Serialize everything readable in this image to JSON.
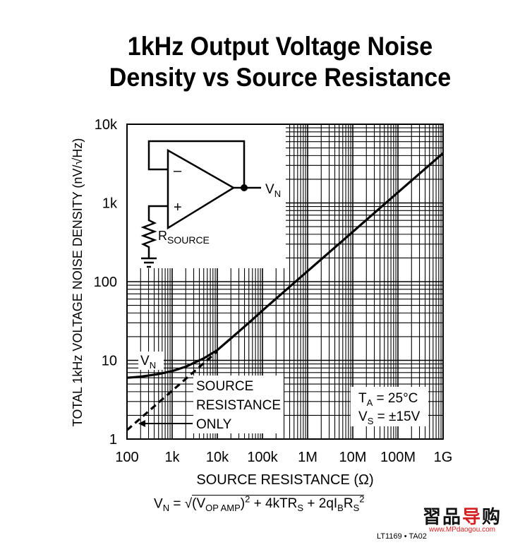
{
  "chart_data": {
    "type": "line",
    "title_lines": [
      "1kHz Output Voltage Noise",
      "Density vs Source Resistance"
    ],
    "xlabel": "SOURCE RESISTANCE (Ω)",
    "ylabel": "TOTAL 1kHz VOLTAGE NOISE DENSITY (nV/√Hz)",
    "x_scale": "log",
    "y_scale": "log",
    "xlim": [
      100,
      1000000000
    ],
    "ylim": [
      1,
      10000
    ],
    "x_ticks": [
      {
        "value": 100,
        "label": "100"
      },
      {
        "value": 1000,
        "label": "1k"
      },
      {
        "value": 10000,
        "label": "10k"
      },
      {
        "value": 100000,
        "label": "100k"
      },
      {
        "value": 1000000,
        "label": "1M"
      },
      {
        "value": 10000000,
        "label": "10M"
      },
      {
        "value": 100000000,
        "label": "100M"
      },
      {
        "value": 1000000000,
        "label": "1G"
      }
    ],
    "y_ticks": [
      {
        "value": 1,
        "label": "1"
      },
      {
        "value": 10,
        "label": "10"
      },
      {
        "value": 100,
        "label": "100"
      },
      {
        "value": 1000,
        "label": "1k"
      },
      {
        "value": 10000,
        "label": "10k"
      }
    ],
    "grid": true,
    "series": [
      {
        "name": "V",
        "name_sub": "N",
        "style": "solid",
        "points": [
          [
            100,
            6.0
          ],
          [
            200,
            6.2
          ],
          [
            500,
            6.7
          ],
          [
            1000,
            7.3
          ],
          [
            2000,
            8.3
          ],
          [
            5000,
            10.6
          ],
          [
            10000,
            13.5
          ],
          [
            20000,
            19
          ],
          [
            50000,
            30
          ],
          [
            100000,
            43
          ],
          [
            1000000,
            136
          ],
          [
            10000000,
            430
          ],
          [
            100000000,
            1360
          ],
          [
            1000000000,
            4300
          ]
        ]
      },
      {
        "name": "SOURCE RESISTANCE ONLY",
        "style": "dashed",
        "points": [
          [
            100,
            1.3
          ],
          [
            10000,
            13
          ]
        ]
      }
    ],
    "annotations": [
      {
        "lines": [
          "SOURCE",
          "RESISTANCE",
          "ONLY"
        ]
      },
      {
        "conditions": [
          "T",
          "A",
          " = 25°C",
          "V",
          "S",
          " = ±15V"
        ]
      }
    ],
    "inset": {
      "minus": "–",
      "plus": "+",
      "output_label": "V",
      "output_sub": "N",
      "resistor_label": "R",
      "resistor_sub": "SOURCE"
    }
  },
  "formula": {
    "lhs": "V",
    "lhs_sub": "N",
    "eq": " = ",
    "radical": "√",
    "vop": "(V",
    "vop_sub": "OP AMP",
    "vop_close": ")",
    "vop_sup": "2",
    "term2": " + 4kTR",
    "term2_sub": "S",
    "term3": " + 2qI",
    "term3_sub": "B",
    "term3b": "R",
    "term3b_sub": "S",
    "term3_sup": "2"
  },
  "chart_id": "LT1169 • TA02",
  "watermark": {
    "text_a": "習品",
    "text_b": "导",
    "text_c": "购",
    "url": "www.MPdaogou.com"
  }
}
